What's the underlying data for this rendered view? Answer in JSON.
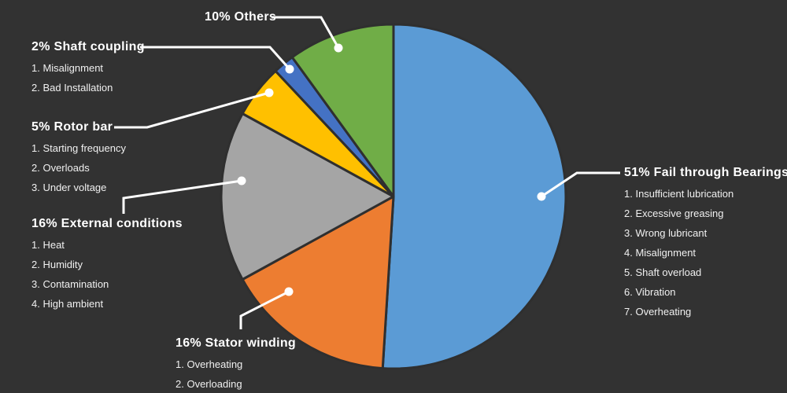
{
  "colors": {
    "background": "#323232",
    "slice_stroke": "#2f2f2f",
    "leader_line": "#ffffff",
    "title_text": "#ffffff",
    "item_text": "#f0f0f0"
  },
  "chart_data": {
    "type": "pie",
    "categories": [
      "Fail through Bearings",
      "Stator winding",
      "External conditions",
      "Rotor bar",
      "Shaft coupling",
      "Others"
    ],
    "values": [
      51,
      16,
      16,
      5,
      2,
      10
    ],
    "unit": "%",
    "colors": [
      "#5B9BD5",
      "#ED7D31",
      "#A5A5A5",
      "#FFC000",
      "#4472C4",
      "#70AD47"
    ],
    "labels": [
      "51% Fail through Bearings",
      "16% Stator winding",
      "16% External conditions",
      "5% Rotor bar",
      "2% Shaft coupling",
      "10% Others"
    ],
    "start_angle_deg": -90,
    "direction": "clockwise",
    "legend": "none",
    "annotations": {
      "Fail through Bearings": [
        "1. Insufficient lubrication",
        "2. Excessive greasing",
        "3. Wrong lubricant",
        "4. Misalignment",
        "5. Shaft overload",
        "6. Vibration",
        "7. Overheating"
      ],
      "Stator winding": [
        "1. Overheating",
        "2. Overloading"
      ],
      "External conditions": [
        "1. Heat",
        "2. Humidity",
        "3. Contamination",
        "4. High ambient"
      ],
      "Rotor bar": [
        "1. Starting frequency",
        "2. Overloads",
        "3. Under voltage"
      ],
      "Shaft coupling": [
        "1. Misalignment",
        "2. Bad Installation"
      ],
      "Others": []
    }
  },
  "slices": [
    {
      "id": "bearings",
      "title": "51% Fail through Bearings",
      "value": 51,
      "color": "#5B9BD5",
      "items": [
        "1. Insufficient lubrication",
        "2. Excessive greasing",
        "3. Wrong lubricant",
        "4. Misalignment",
        "5. Shaft overload",
        "6. Vibration",
        "7. Overheating"
      ]
    },
    {
      "id": "stator-winding",
      "title": "16% Stator winding",
      "value": 16,
      "color": "#ED7D31",
      "items": [
        "1. Overheating",
        "2. Overloading"
      ]
    },
    {
      "id": "external-conditions",
      "title": "16% External conditions",
      "value": 16,
      "color": "#A5A5A5",
      "items": [
        "1. Heat",
        "2. Humidity",
        "3. Contamination",
        "4. High ambient"
      ]
    },
    {
      "id": "rotor-bar",
      "title": "5% Rotor bar",
      "value": 5,
      "color": "#FFC000",
      "items": [
        "1. Starting frequency",
        "2. Overloads",
        "3. Under voltage"
      ]
    },
    {
      "id": "shaft-coupling",
      "title": "2% Shaft coupling",
      "value": 2,
      "color": "#4472C4",
      "items": [
        "1. Misalignment",
        "2. Bad Installation"
      ]
    },
    {
      "id": "others",
      "title": "10% Others",
      "value": 10,
      "color": "#70AD47",
      "items": []
    }
  ]
}
